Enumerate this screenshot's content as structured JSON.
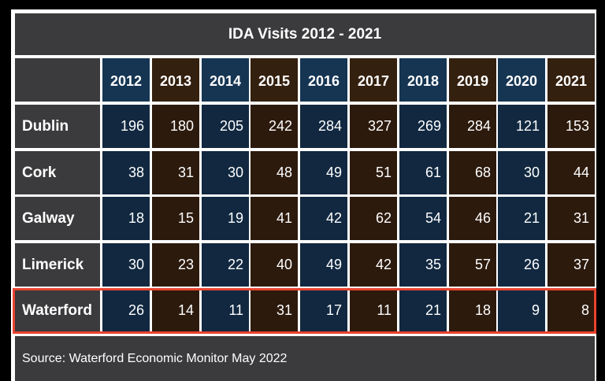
{
  "chart_data": {
    "type": "table",
    "title": "IDA Visits 2012 - 2021",
    "columns": [
      "2012",
      "2013",
      "2014",
      "2015",
      "2016",
      "2017",
      "2018",
      "2019",
      "2020",
      "2021"
    ],
    "rows": [
      {
        "label": "Dublin",
        "values": [
          196,
          180,
          205,
          242,
          284,
          327,
          269,
          284,
          121,
          153
        ]
      },
      {
        "label": "Cork",
        "values": [
          38,
          31,
          30,
          48,
          49,
          51,
          61,
          68,
          30,
          44
        ]
      },
      {
        "label": "Galway",
        "values": [
          18,
          15,
          19,
          41,
          42,
          62,
          54,
          46,
          21,
          31
        ]
      },
      {
        "label": "Limerick",
        "values": [
          30,
          23,
          22,
          40,
          49,
          42,
          35,
          57,
          26,
          37
        ]
      },
      {
        "label": "Waterford",
        "values": [
          26,
          14,
          11,
          31,
          17,
          11,
          21,
          18,
          9,
          8
        ]
      }
    ],
    "highlighted_row": "Waterford",
    "source": "Source: Waterford Economic Monitor May 2022",
    "colors": {
      "header_gray": "#3b3a3c",
      "blue_column": "#112840",
      "brown_column": "#2c1a0d",
      "highlight": "#e8432f"
    }
  }
}
